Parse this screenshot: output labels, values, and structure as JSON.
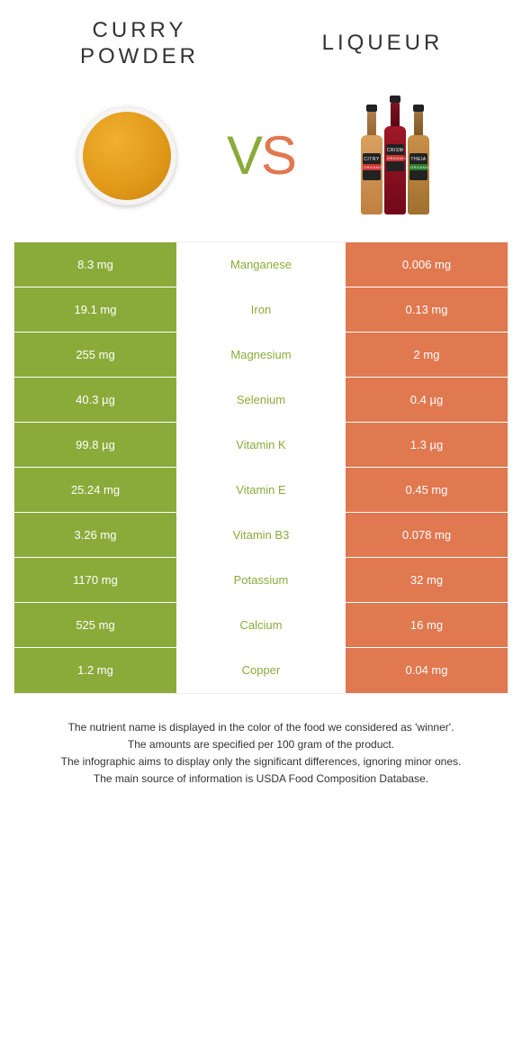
{
  "colors": {
    "left": "#8aab3a",
    "right": "#e07850",
    "text": "#333333",
    "bg": "#ffffff"
  },
  "header": {
    "left_title_line1": "CURRY",
    "left_title_line2": "POWDER",
    "right_title": "LIQUEUR",
    "vs_v": "V",
    "vs_s": "S"
  },
  "bottle_labels": {
    "b1": "CITRY",
    "b2": "CRISM",
    "b3": "THEIA",
    "sub": "ORGANIC"
  },
  "rows": [
    {
      "left": "8.3 mg",
      "label": "Manganese",
      "right": "0.006 mg",
      "winner": "left"
    },
    {
      "left": "19.1 mg",
      "label": "Iron",
      "right": "0.13 mg",
      "winner": "left"
    },
    {
      "left": "255 mg",
      "label": "Magnesium",
      "right": "2 mg",
      "winner": "left"
    },
    {
      "left": "40.3 µg",
      "label": "Selenium",
      "right": "0.4 µg",
      "winner": "left"
    },
    {
      "left": "99.8 µg",
      "label": "Vitamin K",
      "right": "1.3 µg",
      "winner": "left"
    },
    {
      "left": "25.24 mg",
      "label": "Vitamin E",
      "right": "0.45 mg",
      "winner": "left"
    },
    {
      "left": "3.26 mg",
      "label": "Vitamin B3",
      "right": "0.078 mg",
      "winner": "left"
    },
    {
      "left": "1170 mg",
      "label": "Potassium",
      "right": "32 mg",
      "winner": "left"
    },
    {
      "left": "525 mg",
      "label": "Calcium",
      "right": "16 mg",
      "winner": "left"
    },
    {
      "left": "1.2 mg",
      "label": "Copper",
      "right": "0.04 mg",
      "winner": "left"
    }
  ],
  "footer": {
    "line1": "The nutrient name is displayed in the color of the food we considered as 'winner'.",
    "line2": "The amounts are specified per 100 gram of the product.",
    "line3": "The infographic aims to display only the significant differences, ignoring minor ones.",
    "line4": "The main source of information is USDA Food Composition Database."
  }
}
